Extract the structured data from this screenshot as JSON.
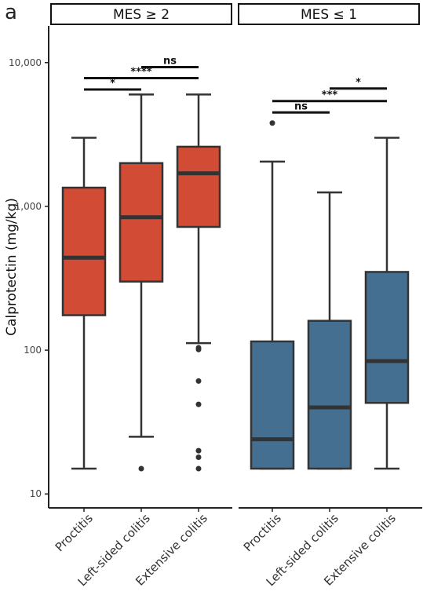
{
  "panel_label": "a",
  "chart_data": {
    "type": "boxplot",
    "ylabel": "Calprotectin (mg/kg)",
    "yscale": "log10",
    "ylim": [
      8,
      18000
    ],
    "yticks": [
      10,
      100,
      1000,
      10000
    ],
    "ytick_labels": [
      "10",
      "100",
      "1,000",
      "10,000"
    ],
    "categories": [
      "Proctitis",
      "Left-sided colitis",
      "Extensive colitis"
    ],
    "panels": [
      {
        "title": "MES ≥ 2",
        "fill": "#d24b34",
        "boxes": [
          {
            "category": "Proctitis",
            "whisker_low": 15,
            "q1": 175,
            "median": 440,
            "q3": 1350,
            "whisker_high": 3000,
            "outliers": []
          },
          {
            "category": "Left-sided colitis",
            "whisker_low": 25,
            "q1": 300,
            "median": 840,
            "q3": 2000,
            "whisker_high": 6000,
            "outliers": [
              15
            ]
          },
          {
            "category": "Extensive colitis",
            "whisker_low": 112,
            "q1": 720,
            "median": 1700,
            "q3": 2600,
            "whisker_high": 6000,
            "outliers": [
              104,
              101,
              61,
              42,
              20,
              18,
              15
            ]
          }
        ],
        "significance": [
          {
            "from": "Proctitis",
            "to": "Left-sided colitis",
            "label": "*",
            "y": 6500
          },
          {
            "from": "Proctitis",
            "to": "Extensive colitis",
            "label": "****",
            "y": 7800
          },
          {
            "from": "Left-sided colitis",
            "to": "Extensive colitis",
            "label": "ns",
            "y": 9300
          }
        ]
      },
      {
        "title": "MES ≤ 1",
        "fill": "#456f90",
        "boxes": [
          {
            "category": "Proctitis",
            "whisker_low": 15,
            "q1": 15,
            "median": 24,
            "q3": 115,
            "whisker_high": 2050,
            "outliers": [
              3800
            ]
          },
          {
            "category": "Left-sided colitis",
            "whisker_low": 15,
            "q1": 15,
            "median": 40,
            "q3": 160,
            "whisker_high": 1250,
            "outliers": []
          },
          {
            "category": "Extensive colitis",
            "whisker_low": 15,
            "q1": 43,
            "median": 84,
            "q3": 350,
            "whisker_high": 3000,
            "outliers": []
          }
        ],
        "significance": [
          {
            "from": "Proctitis",
            "to": "Left-sided colitis",
            "label": "ns",
            "y": 4500
          },
          {
            "from": "Proctitis",
            "to": "Extensive colitis",
            "label": "***",
            "y": 5400
          },
          {
            "from": "Left-sided colitis",
            "to": "Extensive colitis",
            "label": "*",
            "y": 6600
          }
        ]
      }
    ]
  }
}
